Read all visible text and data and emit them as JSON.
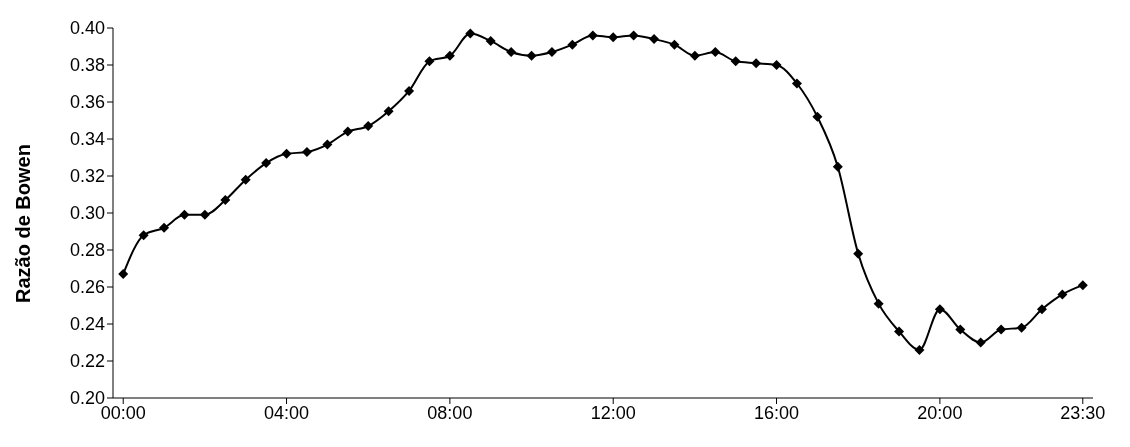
{
  "chart_data": {
    "type": "line",
    "ylabel": "Razão de Bowen",
    "x": [
      0,
      0.5,
      1,
      1.5,
      2,
      2.5,
      3,
      3.5,
      4,
      4.5,
      5,
      5.5,
      6,
      6.5,
      7,
      7.5,
      8,
      8.5,
      9,
      9.5,
      10,
      10.5,
      11,
      11.5,
      12,
      12.5,
      13,
      13.5,
      14,
      14.5,
      15,
      15.5,
      16,
      16.5,
      17,
      17.5,
      18,
      18.5,
      19,
      19.5,
      20,
      20.5,
      21,
      21.5,
      22,
      22.5,
      23,
      23.5
    ],
    "series": [
      {
        "color": "#000000",
        "values": [
          0.267,
          0.288,
          0.292,
          0.299,
          0.299,
          0.307,
          0.318,
          0.327,
          0.332,
          0.333,
          0.337,
          0.344,
          0.347,
          0.355,
          0.366,
          0.382,
          0.385,
          0.397,
          0.393,
          0.387,
          0.385,
          0.387,
          0.391,
          0.396,
          0.395,
          0.396,
          0.394,
          0.391,
          0.385,
          0.387,
          0.382,
          0.381,
          0.38,
          0.37,
          0.352,
          0.325,
          0.278,
          0.251,
          0.236,
          0.226,
          0.248,
          0.237,
          0.23,
          0.237,
          0.238,
          0.248,
          0.256,
          0.261
        ]
      }
    ],
    "xlim": [
      -0.25,
      23.75
    ],
    "xticks": [
      {
        "value": 0,
        "label": "00:00"
      },
      {
        "value": 4,
        "label": "04:00"
      },
      {
        "value": 8,
        "label": "08:00"
      },
      {
        "value": 12,
        "label": "12:00"
      },
      {
        "value": 16,
        "label": "16:00"
      },
      {
        "value": 20,
        "label": "20:00"
      },
      {
        "value": 23.5,
        "label": "23:30"
      }
    ],
    "ylim": [
      0.2,
      0.4
    ],
    "yticks": [
      {
        "value": 0.2,
        "label": "0.20"
      },
      {
        "value": 0.22,
        "label": "0.22"
      },
      {
        "value": 0.24,
        "label": "0.24"
      },
      {
        "value": 0.26,
        "label": "0.26"
      },
      {
        "value": 0.28,
        "label": "0.28"
      },
      {
        "value": 0.3,
        "label": "0.30"
      },
      {
        "value": 0.32,
        "label": "0.32"
      },
      {
        "value": 0.34,
        "label": "0.34"
      },
      {
        "value": 0.36,
        "label": "0.36"
      },
      {
        "value": 0.38,
        "label": "0.38"
      },
      {
        "value": 0.4,
        "label": "0.40"
      }
    ],
    "marker": "diamond",
    "line_style": "solid",
    "grid": false,
    "legend": false
  }
}
